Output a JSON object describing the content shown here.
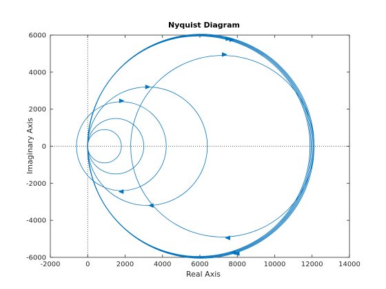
{
  "chart_data": {
    "type": "line",
    "title": "Nyquist Diagram",
    "xlabel": "Real Axis",
    "ylabel": "Imaginary Axis",
    "xlim": [
      -2000,
      14000
    ],
    "ylim": [
      -6000,
      6000
    ],
    "xticks": [
      -2000,
      0,
      2000,
      4000,
      6000,
      8000,
      10000,
      12000,
      14000
    ],
    "yticks": [
      -6000,
      -4000,
      -2000,
      0,
      2000,
      4000,
      6000
    ],
    "grid": false,
    "zero_lines": true,
    "line_color": "#0072BD",
    "series": [
      {
        "kind": "circle",
        "center": [
          6000,
          0
        ],
        "radius": 6000,
        "repeat": 5
      },
      {
        "kind": "circle",
        "center": [
          7200,
          0
        ],
        "radius": 4900
      },
      {
        "kind": "circle",
        "center": [
          3200,
          0
        ],
        "radius": 3200
      },
      {
        "kind": "circle",
        "center": [
          1800,
          0
        ],
        "radius": 2400
      },
      {
        "kind": "circle",
        "center": [
          1500,
          0
        ],
        "radius": 1500
      },
      {
        "kind": "circle",
        "center": [
          900,
          0
        ],
        "radius": 900
      }
    ],
    "arrows": [
      {
        "x": 7300,
        "y": 4950,
        "dir": "right"
      },
      {
        "x": 7500,
        "y": -4950,
        "dir": "left"
      },
      {
        "x": 3200,
        "y": 3200,
        "dir": "right"
      },
      {
        "x": 3400,
        "y": -3200,
        "dir": "left"
      },
      {
        "x": 1800,
        "y": 2450,
        "dir": "right"
      },
      {
        "x": 1800,
        "y": -2450,
        "dir": "left"
      },
      {
        "x": 7500,
        "y": 5800,
        "dir": "right"
      },
      {
        "x": 7700,
        "y": 5750,
        "dir": "right"
      },
      {
        "x": 7800,
        "y": -5750,
        "dir": "left"
      },
      {
        "x": 8000,
        "y": -5800,
        "dir": "left"
      }
    ]
  }
}
